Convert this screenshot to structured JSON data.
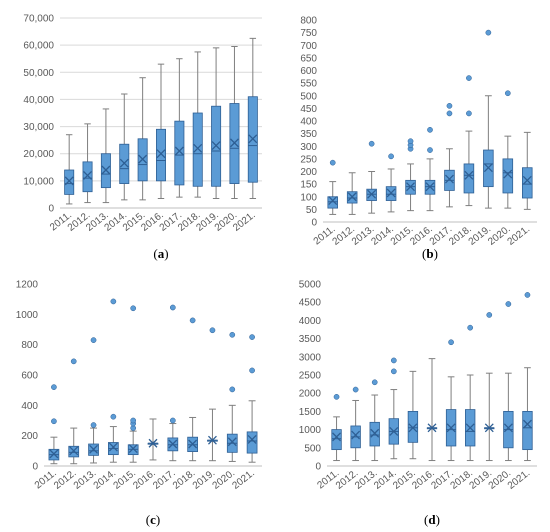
{
  "colors": {
    "box_fill": "#5b9bd5",
    "box_stroke": "#2e5f94",
    "whisker": "#7f7f7f",
    "axis_text": "#595959",
    "gridline": "#d9d9d9",
    "mean_marker": "#2e5f94",
    "outlier": "#5b9bd5"
  },
  "panels": [
    {
      "caption": "(a)"
    },
    {
      "caption": "(b)"
    },
    {
      "caption": "(c)"
    },
    {
      "caption": "(d)"
    }
  ],
  "chart_data": [
    {
      "type": "box",
      "categories": [
        "2011.",
        "2012.",
        "2013.",
        "2014.",
        "2015.",
        "2016.",
        "2017.",
        "2018.",
        "2019.",
        "2020.",
        "2021."
      ],
      "ylim": [
        0,
        70000
      ],
      "yticks": [
        0,
        10000,
        20000,
        30000,
        40000,
        50000,
        60000,
        70000
      ],
      "ytick_labels": [
        "0",
        "10,000",
        "20,000",
        "30,000",
        "40,000",
        "50,000",
        "60,000",
        "70,000"
      ],
      "grid": true,
      "series": [
        {
          "min": 1500,
          "q1": 5000,
          "median": 9000,
          "q3": 14000,
          "max": 27000,
          "mean": 10000,
          "outliers": []
        },
        {
          "min": 2000,
          "q1": 6000,
          "median": 11000,
          "q3": 17000,
          "max": 31000,
          "mean": 12000,
          "outliers": []
        },
        {
          "min": 2000,
          "q1": 7500,
          "median": 12500,
          "q3": 20000,
          "max": 36500,
          "mean": 14000,
          "outliers": []
        },
        {
          "min": 3000,
          "q1": 9000,
          "median": 14500,
          "q3": 23500,
          "max": 42000,
          "mean": 16500,
          "outliers": []
        },
        {
          "min": 3000,
          "q1": 10000,
          "median": 16000,
          "q3": 25500,
          "max": 48000,
          "mean": 18000,
          "outliers": []
        },
        {
          "min": 3500,
          "q1": 10000,
          "median": 17500,
          "q3": 29000,
          "max": 53000,
          "mean": 20000,
          "outliers": []
        },
        {
          "min": 4000,
          "q1": 8500,
          "median": 19500,
          "q3": 32000,
          "max": 55000,
          "mean": 21000,
          "outliers": []
        },
        {
          "min": 4000,
          "q1": 8000,
          "median": 20000,
          "q3": 35000,
          "max": 57500,
          "mean": 22000,
          "outliers": []
        },
        {
          "min": 3500,
          "q1": 8000,
          "median": 21000,
          "q3": 37500,
          "max": 59000,
          "mean": 23000,
          "outliers": []
        },
        {
          "min": 3500,
          "q1": 9000,
          "median": 22000,
          "q3": 38500,
          "max": 59500,
          "mean": 24000,
          "outliers": []
        },
        {
          "min": 3500,
          "q1": 9500,
          "median": 23000,
          "q3": 41000,
          "max": 62500,
          "mean": 25500,
          "outliers": []
        }
      ]
    },
    {
      "type": "box",
      "categories": [
        "2011.",
        "2012.",
        "2013.",
        "2014.",
        "2015.",
        "2016.",
        "2017.",
        "2018.",
        "2019.",
        "2020.",
        "2021."
      ],
      "ylim": [
        0,
        800
      ],
      "yticks": [
        0,
        50,
        100,
        150,
        200,
        250,
        300,
        350,
        400,
        450,
        500,
        550,
        600,
        650,
        700,
        750,
        800
      ],
      "ytick_labels": [
        "0",
        "50",
        "100",
        "150",
        "200",
        "250",
        "300",
        "350",
        "400",
        "450",
        "500",
        "550",
        "600",
        "650",
        "700",
        "750",
        "800"
      ],
      "grid": false,
      "series": [
        {
          "min": 30,
          "q1": 55,
          "median": 80,
          "q3": 100,
          "max": 160,
          "mean": 85,
          "outliers": [
            235
          ]
        },
        {
          "min": 30,
          "q1": 75,
          "median": 95,
          "q3": 120,
          "max": 195,
          "mean": 100,
          "outliers": []
        },
        {
          "min": 35,
          "q1": 85,
          "median": 110,
          "q3": 130,
          "max": 200,
          "mean": 110,
          "outliers": [
            310
          ]
        },
        {
          "min": 40,
          "q1": 85,
          "median": 110,
          "q3": 140,
          "max": 210,
          "mean": 115,
          "outliers": [
            260
          ]
        },
        {
          "min": 45,
          "q1": 110,
          "median": 140,
          "q3": 165,
          "max": 230,
          "mean": 140,
          "outliers": [
            290,
            305,
            320
          ]
        },
        {
          "min": 45,
          "q1": 110,
          "median": 140,
          "q3": 165,
          "max": 250,
          "mean": 140,
          "outliers": [
            285,
            365
          ]
        },
        {
          "min": 60,
          "q1": 125,
          "median": 165,
          "q3": 205,
          "max": 290,
          "mean": 170,
          "outliers": [
            430,
            460
          ]
        },
        {
          "min": 65,
          "q1": 115,
          "median": 185,
          "q3": 230,
          "max": 360,
          "mean": 185,
          "outliers": [
            430,
            570
          ]
        },
        {
          "min": 55,
          "q1": 140,
          "median": 230,
          "q3": 285,
          "max": 500,
          "mean": 215,
          "outliers": [
            750
          ]
        },
        {
          "min": 55,
          "q1": 115,
          "median": 195,
          "q3": 250,
          "max": 340,
          "mean": 190,
          "outliers": [
            510
          ]
        },
        {
          "min": 50,
          "q1": 95,
          "median": 150,
          "q3": 215,
          "max": 355,
          "mean": 165,
          "outliers": []
        }
      ]
    },
    {
      "type": "box",
      "categories": [
        "2011.",
        "2012.",
        "2013.",
        "2014.",
        "2015.",
        "2016.",
        "2017.",
        "2018.",
        "2019.",
        "2020.",
        "2021."
      ],
      "ylim": [
        0,
        1200
      ],
      "yticks": [
        0,
        200,
        400,
        600,
        800,
        1000,
        1200
      ],
      "ytick_labels": [
        "0",
        "200",
        "400",
        "600",
        "800",
        "1000",
        "1200"
      ],
      "grid": false,
      "series": [
        {
          "min": 15,
          "q1": 40,
          "median": 75,
          "q3": 110,
          "max": 190,
          "mean": 80,
          "outliers": [
            295,
            520
          ]
        },
        {
          "min": 15,
          "q1": 60,
          "median": 90,
          "q3": 130,
          "max": 250,
          "mean": 100,
          "outliers": [
            690
          ]
        },
        {
          "min": 20,
          "q1": 70,
          "median": 100,
          "q3": 145,
          "max": 250,
          "mean": 110,
          "outliers": [
            270,
            830
          ]
        },
        {
          "min": 25,
          "q1": 75,
          "median": 115,
          "q3": 155,
          "max": 260,
          "mean": 125,
          "outliers": [
            325,
            1085
          ]
        },
        {
          "min": 25,
          "q1": 75,
          "median": 110,
          "q3": 140,
          "max": 230,
          "mean": 115,
          "outliers": [
            250,
            280,
            300,
            1040
          ]
        },
        {
          "min": 40,
          "q1": 150,
          "median": 150,
          "q3": 150,
          "max": 310,
          "mean": 150,
          "outliers": []
        },
        {
          "min": 35,
          "q1": 100,
          "median": 140,
          "q3": 185,
          "max": 280,
          "mean": 145,
          "outliers": [
            300,
            1045
          ]
        },
        {
          "min": 35,
          "q1": 95,
          "median": 140,
          "q3": 190,
          "max": 320,
          "mean": 145,
          "outliers": [
            960
          ]
        },
        {
          "min": 35,
          "q1": 170,
          "median": 170,
          "q3": 170,
          "max": 375,
          "mean": 170,
          "outliers": [
            895
          ]
        },
        {
          "min": 30,
          "q1": 90,
          "median": 150,
          "q3": 210,
          "max": 400,
          "mean": 160,
          "outliers": [
            505,
            865
          ]
        },
        {
          "min": 25,
          "q1": 85,
          "median": 165,
          "q3": 225,
          "max": 430,
          "mean": 175,
          "outliers": [
            630,
            850
          ]
        }
      ]
    },
    {
      "type": "box",
      "categories": [
        "2011.",
        "2012.",
        "2013.",
        "2014.",
        "2015.",
        "2016.",
        "2017.",
        "2018.",
        "2019.",
        "2020.",
        "2021."
      ],
      "ylim": [
        0,
        5000
      ],
      "yticks": [
        0,
        500,
        1000,
        1500,
        2000,
        2500,
        3000,
        3500,
        4000,
        4500,
        5000
      ],
      "ytick_labels": [
        "0",
        "500",
        "1000",
        "1500",
        "2000",
        "2500",
        "3000",
        "3500",
        "4000",
        "4500",
        "5000"
      ],
      "grid": false,
      "series": [
        {
          "min": 150,
          "q1": 450,
          "median": 750,
          "q3": 1000,
          "max": 1350,
          "mean": 800,
          "outliers": [
            1900
          ]
        },
        {
          "min": 150,
          "q1": 500,
          "median": 800,
          "q3": 1100,
          "max": 1800,
          "mean": 850,
          "outliers": [
            2100
          ]
        },
        {
          "min": 150,
          "q1": 550,
          "median": 850,
          "q3": 1200,
          "max": 1950,
          "mean": 900,
          "outliers": [
            2300
          ]
        },
        {
          "min": 200,
          "q1": 600,
          "median": 950,
          "q3": 1300,
          "max": 2100,
          "mean": 950,
          "outliers": [
            2600,
            2900
          ]
        },
        {
          "min": 200,
          "q1": 650,
          "median": 1050,
          "q3": 1500,
          "max": 2600,
          "mean": 1050,
          "outliers": []
        },
        {
          "min": 150,
          "q1": 1050,
          "median": 1050,
          "q3": 1050,
          "max": 2950,
          "mean": 1050,
          "outliers": []
        },
        {
          "min": 150,
          "q1": 550,
          "median": 1000,
          "q3": 1550,
          "max": 2450,
          "mean": 1050,
          "outliers": [
            3400
          ]
        },
        {
          "min": 150,
          "q1": 550,
          "median": 950,
          "q3": 1550,
          "max": 2500,
          "mean": 1050,
          "outliers": [
            3800
          ]
        },
        {
          "min": 150,
          "q1": 1050,
          "median": 1050,
          "q3": 1050,
          "max": 2550,
          "mean": 1050,
          "outliers": [
            4150
          ]
        },
        {
          "min": 150,
          "q1": 500,
          "median": 1000,
          "q3": 1500,
          "max": 2550,
          "mean": 1050,
          "outliers": [
            4450
          ]
        },
        {
          "min": 150,
          "q1": 450,
          "median": 1050,
          "q3": 1500,
          "max": 2700,
          "mean": 1150,
          "outliers": [
            4700
          ]
        }
      ]
    }
  ]
}
